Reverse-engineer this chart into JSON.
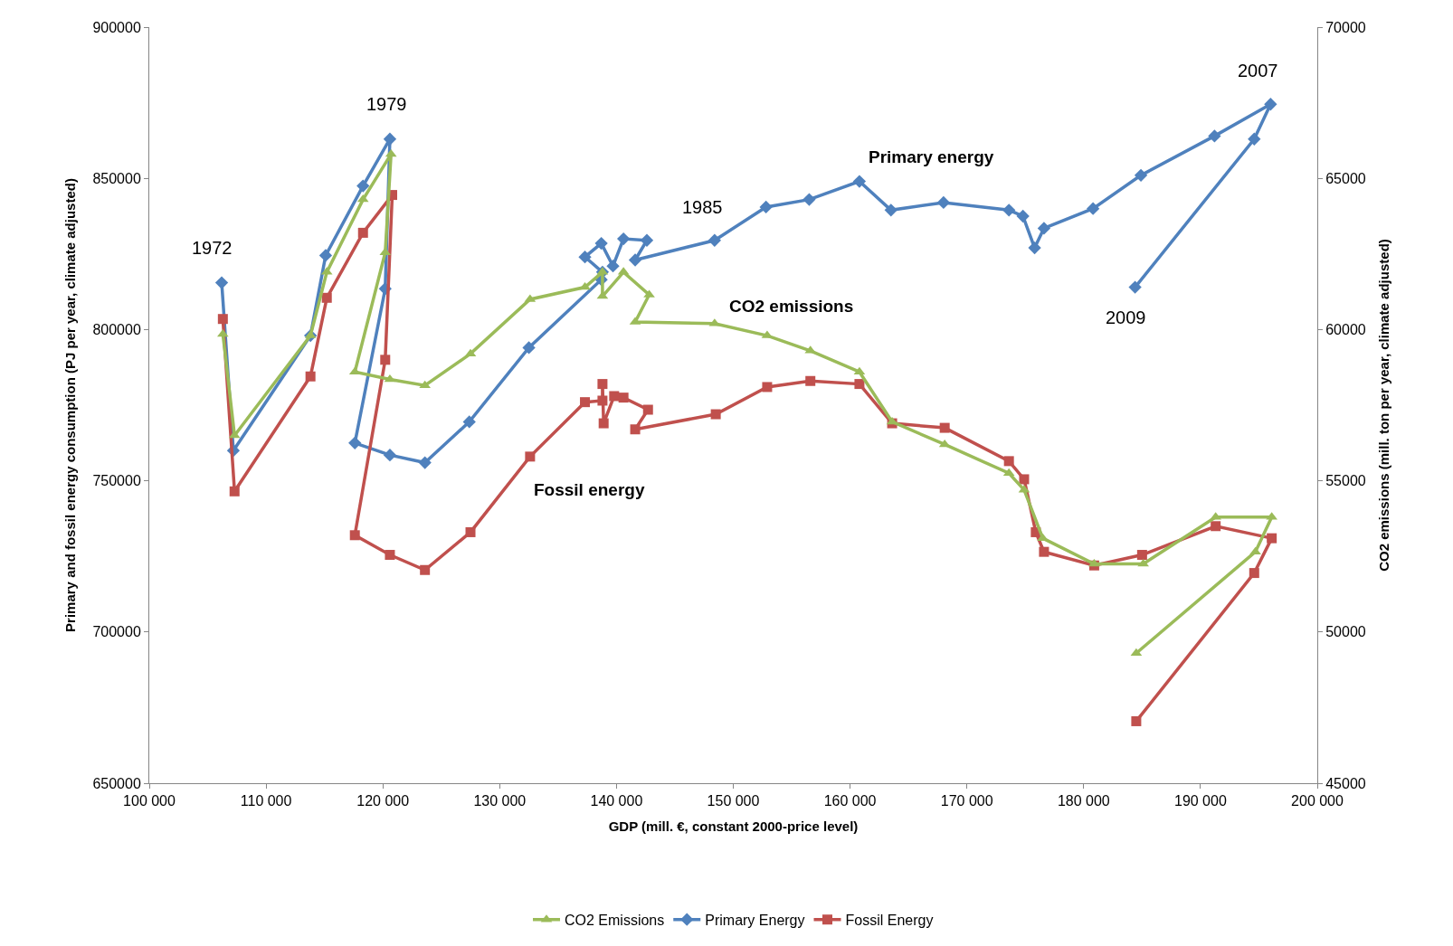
{
  "chart_data": {
    "type": "line",
    "xlabel": "GDP (mill. €, constant 2000-price level)",
    "ylabel": "Primary and fossil energy consumption (PJ per year, climate adjusted)",
    "y2label": "CO2 emissions (mill. ton per year, climate adjusted)",
    "xlim": [
      100000,
      200000
    ],
    "xticks": [
      {
        "value": 100000,
        "label": "100 000"
      },
      {
        "value": 110000,
        "label": "110 000"
      },
      {
        "value": 120000,
        "label": "120 000"
      },
      {
        "value": 130000,
        "label": "130 000"
      },
      {
        "value": 140000,
        "label": "140 000"
      },
      {
        "value": 150000,
        "label": "150 000"
      },
      {
        "value": 160000,
        "label": "160 000"
      },
      {
        "value": 170000,
        "label": "170 000"
      },
      {
        "value": 180000,
        "label": "180 000"
      },
      {
        "value": 190000,
        "label": "190 000"
      },
      {
        "value": 200000,
        "label": "200 000"
      }
    ],
    "ylim": [
      650000,
      900000
    ],
    "yticks": [
      650000,
      700000,
      750000,
      800000,
      850000,
      900000
    ],
    "y2lim": [
      45000,
      70000
    ],
    "y2ticks": [
      45000,
      50000,
      55000,
      60000,
      65000,
      70000
    ],
    "legend": "bottom",
    "series": [
      {
        "name": "CO2 Emissions",
        "color": "#9bbb59",
        "axis": "y2",
        "marker": "triangle",
        "x": [
          106300,
          107300,
          113800,
          115200,
          118300,
          120700,
          120200,
          117600,
          120600,
          123600,
          127500,
          132600,
          137300,
          138800,
          138800,
          140600,
          142800,
          141600,
          148400,
          152900,
          156600,
          160800,
          163600,
          168100,
          173600,
          174900,
          176500,
          180900,
          185100,
          191300,
          196100,
          194700,
          184500
        ],
        "values": [
          59850,
          56500,
          59800,
          61900,
          64300,
          65800,
          62550,
          58600,
          58350,
          58150,
          59200,
          61000,
          61400,
          61900,
          61100,
          61900,
          61150,
          60250,
          60200,
          59800,
          59300,
          58600,
          56950,
          56200,
          55250,
          54700,
          53100,
          52250,
          52250,
          53800,
          53800,
          52650,
          49300
        ]
      },
      {
        "name": "Primary Energy",
        "color": "#4f81bd",
        "marker": "diamond",
        "x": [
          106200,
          107200,
          113800,
          115100,
          118300,
          120600,
          120200,
          117600,
          120600,
          123600,
          127400,
          132500,
          138700,
          138800,
          137300,
          138700,
          139700,
          140600,
          142600,
          141600,
          148400,
          152800,
          156500,
          160800,
          163500,
          168000,
          173600,
          174800,
          175800,
          176600,
          180800,
          184900,
          191200,
          196000,
          194600,
          184400
        ],
        "values": [
          815500,
          760000,
          798000,
          824500,
          847500,
          863000,
          813500,
          762500,
          758500,
          756000,
          769500,
          794000,
          816500,
          819000,
          824000,
          828500,
          821000,
          830000,
          829500,
          823000,
          829500,
          840500,
          843000,
          849000,
          839500,
          842000,
          839500,
          837500,
          827000,
          833500,
          840000,
          851000,
          864000,
          874500,
          863000,
          814000
        ]
      },
      {
        "name": "Fossil Energy",
        "color": "#c0504d",
        "marker": "square",
        "x": [
          106300,
          107300,
          113800,
          115200,
          118300,
          120800,
          120200,
          117600,
          120600,
          123600,
          127500,
          132600,
          137300,
          138800,
          138800,
          138900,
          139800,
          140600,
          142700,
          141600,
          148500,
          152900,
          156600,
          160800,
          163600,
          168100,
          173600,
          174900,
          175900,
          176600,
          180900,
          185000,
          191300,
          196100,
          194600,
          184500
        ],
        "values": [
          803500,
          746500,
          784500,
          810500,
          832000,
          844500,
          790000,
          732000,
          725500,
          720500,
          733000,
          758000,
          776000,
          776500,
          782000,
          769000,
          778000,
          777500,
          773500,
          767000,
          772000,
          781000,
          783000,
          782000,
          769000,
          767500,
          756500,
          750500,
          733000,
          726500,
          722000,
          725500,
          735000,
          731000,
          719500,
          670500
        ]
      }
    ],
    "annotations": [
      {
        "text": "1972",
        "x": 106200,
        "y": 815500
      },
      {
        "text": "1979",
        "x": 120600,
        "y": 863000
      },
      {
        "text": "1985",
        "x": 148400,
        "y": 829500
      },
      {
        "text": "2007",
        "x": 196000,
        "y": 874500
      },
      {
        "text": "2009",
        "x": 184400,
        "y": 814000
      },
      {
        "text": "Primary energy",
        "x": 160800,
        "y": 849000
      },
      {
        "text": "CO2 emissions",
        "x": 152900,
        "y": 798000
      },
      {
        "text": "Fossil energy",
        "x": 132600,
        "y": 758000
      }
    ]
  }
}
